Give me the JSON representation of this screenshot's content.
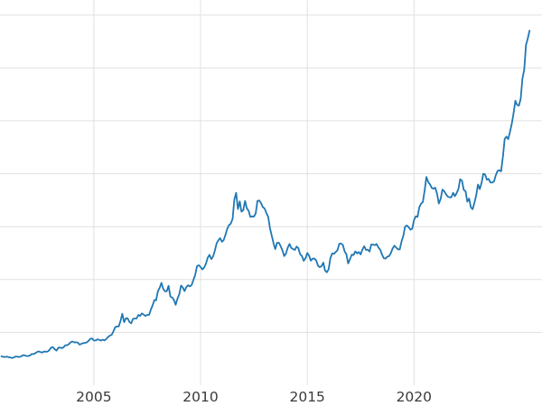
{
  "chart_data": {
    "type": "line",
    "title": "",
    "xlabel": "",
    "ylabel": "",
    "series_name": "price-series",
    "line_color": "#1f77b4",
    "grid_color": "#e0e0e0",
    "tick_label_color": "#3a3a3a",
    "background": "#ffffff",
    "xlim": [
      2000.6,
      2026.0
    ],
    "ylim": [
      0,
      3600
    ],
    "x_ticks": [
      2005,
      2010,
      2015,
      2020
    ],
    "x_tick_labels": [
      "2005",
      "2010",
      "2015",
      "2020"
    ],
    "y_gridlines": [
      500,
      1000,
      1500,
      2000,
      2500,
      3000,
      3500
    ],
    "legend": "none",
    "x_start": 2000.6667,
    "x_step_per_point": 0.0833333,
    "values": [
      273,
      270,
      266,
      271,
      265,
      262,
      258,
      263,
      272,
      270,
      267,
      272,
      283,
      283,
      276,
      276,
      281,
      295,
      294,
      302,
      314,
      321,
      313,
      310,
      319,
      317,
      319,
      333,
      357,
      359,
      340,
      328,
      355,
      357,
      351,
      360,
      379,
      379,
      390,
      407,
      414,
      405,
      406,
      403,
      384,
      392,
      398,
      401,
      405,
      420,
      439,
      442,
      424,
      423,
      434,
      429,
      422,
      431,
      424,
      438,
      456,
      470,
      477,
      510,
      550,
      555,
      557,
      611,
      676,
      596,
      634,
      632,
      598,
      586,
      628,
      630,
      631,
      665,
      655,
      680,
      667,
      655,
      665,
      665,
      713,
      755,
      806,
      803,
      890,
      922,
      968,
      910,
      889,
      889,
      940,
      839,
      830,
      807,
      761,
      820,
      858,
      943,
      924,
      890,
      929,
      946,
      934,
      949,
      997,
      1043,
      1127,
      1135,
      1118,
      1095,
      1113,
      1149,
      1205,
      1233,
      1193,
      1216,
      1271,
      1342,
      1370,
      1391,
      1356,
      1373,
      1424,
      1480,
      1513,
      1529,
      1573,
      1756,
      1820,
      1666,
      1739,
      1641,
      1655,
      1743,
      1674,
      1650,
      1591,
      1597,
      1594,
      1626,
      1744,
      1747,
      1722,
      1685,
      1671,
      1628,
      1593,
      1487,
      1414,
      1343,
      1287,
      1347,
      1348,
      1316,
      1276,
      1222,
      1244,
      1300,
      1336,
      1299,
      1288,
      1279,
      1311,
      1296,
      1238,
      1222,
      1176,
      1201,
      1251,
      1227,
      1178,
      1198,
      1199,
      1181,
      1130,
      1117,
      1125,
      1159,
      1086,
      1068,
      1097,
      1200,
      1246,
      1242,
      1260,
      1277,
      1337,
      1340,
      1327,
      1266,
      1238,
      1152,
      1192,
      1234,
      1231,
      1266,
      1246,
      1260,
      1237,
      1283,
      1315,
      1280,
      1282,
      1264,
      1331,
      1330,
      1325,
      1335,
      1303,
      1282,
      1238,
      1202,
      1198,
      1215,
      1221,
      1250,
      1292,
      1320,
      1301,
      1286,
      1284,
      1359,
      1413,
      1500,
      1511,
      1495,
      1471,
      1479,
      1561,
      1597,
      1592,
      1683,
      1716,
      1732,
      1843,
      1969,
      1922,
      1900,
      1866,
      1858,
      1867,
      1808,
      1718,
      1762,
      1850,
      1835,
      1807,
      1784,
      1777,
      1777,
      1820,
      1787,
      1817,
      1856,
      1948,
      1935,
      1848,
      1834,
      1736,
      1765,
      1681,
      1664,
      1726,
      1797,
      1898,
      1855,
      1913,
      2000,
      1992,
      1943,
      1951,
      1918,
      1916,
      1928,
      1984,
      2026,
      2034,
      2023,
      2158,
      2330,
      2351,
      2327,
      2398,
      2470,
      2570,
      2690,
      2651,
      2644,
      2708,
      2897,
      2983,
      3218,
      3280,
      3353
    ]
  }
}
